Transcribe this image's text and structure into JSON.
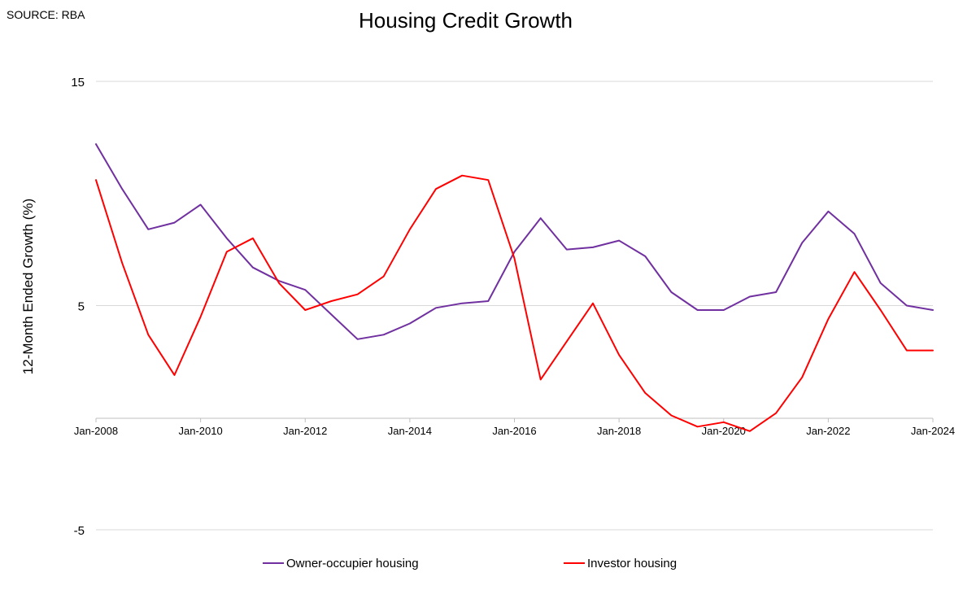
{
  "source": "SOURCE: RBA",
  "chart_data": {
    "type": "line",
    "title": "Housing Credit Growth",
    "xlabel": "",
    "ylabel": "12-Month Ended Growth (%)",
    "ylim": [
      -5,
      15
    ],
    "yticks": [
      15,
      5,
      -5
    ],
    "xlim": [
      "Jan-2008",
      "Jan-2024"
    ],
    "xticks": [
      "Jan-2008",
      "Jan-2010",
      "Jan-2012",
      "Jan-2014",
      "Jan-2016",
      "Jan-2018",
      "Jan-2020",
      "Jan-2022",
      "Jan-2024"
    ],
    "grid": "horizontal",
    "legend": "bottom",
    "x": [
      "Jan-2008",
      "Jul-2008",
      "Jan-2009",
      "Jul-2009",
      "Jan-2010",
      "Jul-2010",
      "Jan-2011",
      "Jul-2011",
      "Jan-2012",
      "Jul-2012",
      "Jan-2013",
      "Jul-2013",
      "Jan-2014",
      "Jul-2014",
      "Jan-2015",
      "Jul-2015",
      "Jan-2016",
      "Jul-2016",
      "Jan-2017",
      "Jul-2017",
      "Jan-2018",
      "Jul-2018",
      "Jan-2019",
      "Jul-2019",
      "Jan-2020",
      "Jul-2020",
      "Jan-2021",
      "Jul-2021",
      "Jan-2022",
      "Jul-2022",
      "Jan-2023",
      "Jul-2023",
      "Jan-2024"
    ],
    "series": [
      {
        "name": "Owner-occupier housing",
        "color": "#7030a0",
        "values": [
          12.2,
          10.2,
          8.4,
          8.7,
          9.5,
          8.0,
          6.7,
          6.1,
          5.7,
          4.6,
          3.5,
          3.7,
          4.2,
          4.9,
          5.1,
          5.2,
          7.4,
          8.9,
          7.5,
          7.6,
          7.9,
          7.2,
          5.6,
          4.8,
          4.8,
          5.4,
          5.6,
          7.8,
          9.2,
          8.2,
          6.0,
          5.0,
          4.8
        ]
      },
      {
        "name": "Investor housing",
        "color": "#ff0000",
        "values": [
          10.6,
          6.9,
          3.7,
          1.9,
          4.5,
          7.4,
          8.0,
          6.0,
          4.8,
          5.2,
          5.5,
          6.3,
          8.4,
          10.2,
          10.8,
          10.6,
          7.1,
          1.7,
          3.4,
          5.1,
          2.8,
          1.1,
          0.1,
          -0.4,
          -0.2,
          -0.6,
          0.2,
          1.8,
          4.4,
          6.5,
          4.8,
          3.0,
          3.0
        ]
      }
    ]
  }
}
